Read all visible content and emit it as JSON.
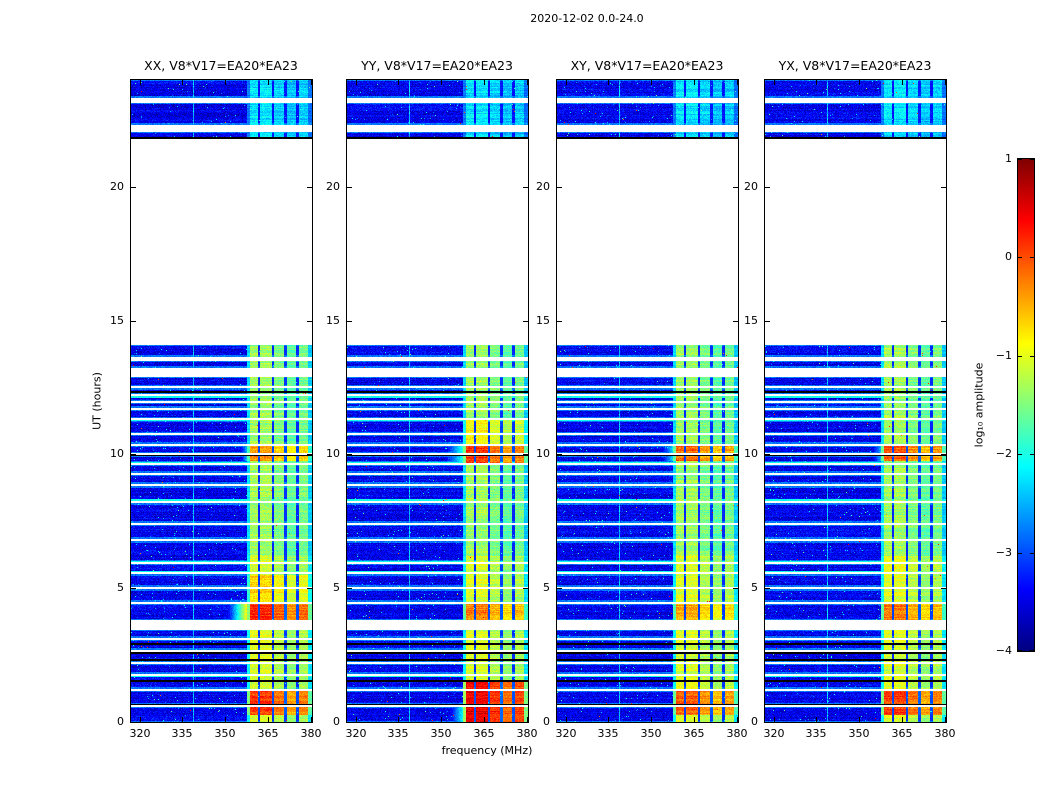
{
  "chart_data": {
    "type": "heatmap",
    "title": "2020-12-02 0.0-24.0",
    "xlabel": "frequency (MHz)",
    "ylabel": "UT (hours)",
    "colorbar_label": "log₁₀ amplitude",
    "colormap": "jet",
    "x_range": [
      317.0,
      380.4
    ],
    "x_ticks": [
      320,
      335,
      350,
      365,
      380
    ],
    "y_range": [
      0,
      24
    ],
    "y_ticks": [
      0,
      5,
      10,
      15,
      20
    ],
    "value_range": [
      -4,
      1
    ],
    "colorbar_ticks": {
      "values": [
        1,
        0,
        -1,
        -2,
        -3,
        -4
      ],
      "labels": [
        "1",
        "0",
        "−1",
        "−2",
        "−3",
        "−4"
      ]
    },
    "panels": [
      {
        "id": "XX",
        "title": "XX, V8*V17=EA20*EA23",
        "seed": 101,
        "hot_rows": [
          {
            "t0": 9.75,
            "t1": 10.35,
            "boost": 1.0,
            "glow_level": -2.5,
            "glow_reach": 4
          },
          {
            "t0": 3.8,
            "t1": 4.45,
            "boost": 1.25,
            "glow_level": -0.9,
            "glow_reach": 5
          },
          {
            "t0": 0.25,
            "t1": 1.15,
            "boost": 1.15
          },
          {
            "t0": 4.5,
            "t1": 5.5,
            "boost": 0.35
          }
        ]
      },
      {
        "id": "YY",
        "title": "YY, V8*V17=EA20*EA23",
        "seed": 202,
        "hot_rows": [
          {
            "t0": 9.7,
            "t1": 10.4,
            "boost": 1.5,
            "glow_level": -2.0,
            "glow_reach": 8
          },
          {
            "t0": 10.4,
            "t1": 11.3,
            "boost": 0.5
          },
          {
            "t0": 0.0,
            "t1": 0.57,
            "boost": 1.55,
            "glow_level": -2.1,
            "glow_reach": 6
          },
          {
            "t0": 0.65,
            "t1": 1.5,
            "boost": 1.45
          },
          {
            "t0": 3.8,
            "t1": 4.45,
            "boost": 0.8
          }
        ]
      },
      {
        "id": "XY",
        "title": "XY, V8*V17=EA20*EA23",
        "seed": 303,
        "hot_rows": [
          {
            "t0": 9.75,
            "t1": 10.35,
            "boost": 1.2,
            "glow_level": -2.3,
            "glow_reach": 6
          },
          {
            "t0": 0.25,
            "t1": 1.15,
            "boost": 0.95
          },
          {
            "t0": 3.8,
            "t1": 4.45,
            "boost": 0.6
          }
        ]
      },
      {
        "id": "YX",
        "title": "YX, V8*V17=EA20*EA23",
        "seed": 404,
        "hot_rows": [
          {
            "t0": 9.75,
            "t1": 10.35,
            "boost": 1.3,
            "glow_level": -2.5,
            "glow_reach": 5
          },
          {
            "t0": 0.25,
            "t1": 1.15,
            "boost": 1.15
          },
          {
            "t0": 3.8,
            "t1": 4.45,
            "boost": 0.85
          }
        ]
      }
    ],
    "features": {
      "background_level": -3.45,
      "narrow_line_freq": 339.0,
      "band": {
        "level_low": -1.05,
        "level_mid": -1.35,
        "level_top": -2.25,
        "profile": [
          [
            357.5,
            358.6,
            0.55
          ],
          [
            358.6,
            361.4,
            1.0
          ],
          [
            361.4,
            362.2,
            0.12
          ],
          [
            362.2,
            366.4,
            1.0
          ],
          [
            366.4,
            367.2,
            0.12
          ],
          [
            367.2,
            370.7,
            0.92
          ],
          [
            370.7,
            371.6,
            0.15
          ],
          [
            371.6,
            374.9,
            0.85
          ],
          [
            374.9,
            375.8,
            0.12
          ],
          [
            375.8,
            378.9,
            0.9
          ],
          [
            378.9,
            380.4,
            0.5
          ]
        ]
      },
      "segments": [
        [
          0.0,
          0.57
        ],
        [
          0.65,
          1.17
        ],
        [
          1.25,
          1.72
        ],
        [
          1.8,
          2.17
        ],
        [
          2.25,
          2.62
        ],
        [
          2.7,
          3.07
        ],
        [
          3.15,
          3.45
        ],
        [
          3.8,
          4.42
        ],
        [
          4.5,
          4.97
        ],
        [
          5.05,
          5.52
        ],
        [
          5.6,
          5.92
        ],
        [
          6.0,
          6.75
        ],
        [
          6.85,
          7.37
        ],
        [
          7.45,
          8.17
        ],
        [
          8.25,
          8.82
        ],
        [
          8.9,
          9.25
        ],
        [
          9.32,
          9.62
        ],
        [
          9.7,
          9.97
        ],
        [
          10.05,
          10.32
        ],
        [
          10.4,
          10.73
        ],
        [
          10.8,
          11.28
        ],
        [
          11.35,
          11.67
        ],
        [
          11.75,
          11.93
        ],
        [
          12.0,
          12.2
        ],
        [
          12.28,
          12.47
        ],
        [
          12.55,
          12.9
        ],
        [
          13.25,
          13.5
        ],
        [
          13.65,
          14.1
        ],
        [
          21.79,
          22.06
        ],
        [
          22.32,
          23.14
        ],
        [
          23.33,
          24.0
        ]
      ],
      "black_rows": [
        0.62,
        1.2,
        1.52,
        2.32,
        2.6,
        2.92,
        10.0,
        12.35,
        21.82
      ],
      "cyan_rows": [
        1.73,
        5.58,
        5.95,
        8.3,
        9.65,
        11.3,
        12.15
      ]
    }
  }
}
